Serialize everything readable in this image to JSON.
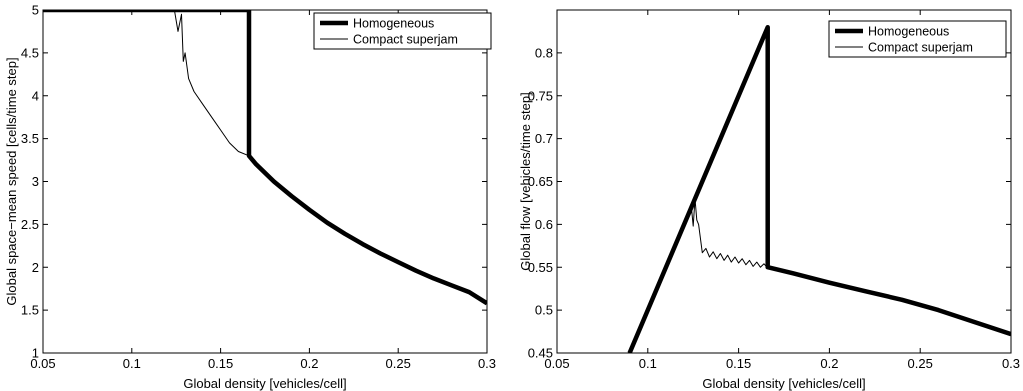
{
  "chart_data": [
    {
      "type": "line",
      "xlabel": "Global density [vehicles/cell]",
      "ylabel": "Global space−mean speed [cells/time step]",
      "xlim": [
        0.05,
        0.3
      ],
      "ylim": [
        1,
        5
      ],
      "x_ticks": [
        0.05,
        0.1,
        0.15,
        0.2,
        0.25,
        0.3
      ],
      "x_tick_labels": [
        "0.05",
        "0.1",
        "0.15",
        "0.2",
        "0.25",
        "0.3"
      ],
      "y_ticks": [
        1,
        1.5,
        2,
        2.5,
        3,
        3.5,
        4,
        4.5,
        5
      ],
      "y_tick_labels": [
        "1",
        "1.5",
        "2",
        "2.5",
        "3",
        "3.5",
        "4",
        "4.5",
        "5"
      ],
      "legend_position": "top-right",
      "grid": false,
      "series": [
        {
          "name": "Homogeneous",
          "style": "thick",
          "x": [
            0.05,
            0.166,
            0.166,
            0.17,
            0.18,
            0.19,
            0.2,
            0.21,
            0.22,
            0.23,
            0.24,
            0.25,
            0.26,
            0.27,
            0.28,
            0.29,
            0.3
          ],
          "y": [
            5.0,
            5.0,
            3.3,
            3.2,
            3.0,
            2.83,
            2.67,
            2.52,
            2.39,
            2.27,
            2.16,
            2.06,
            1.96,
            1.87,
            1.79,
            1.71,
            1.58
          ]
        },
        {
          "name": "Compact superjam",
          "style": "thin",
          "x": [
            0.05,
            0.124,
            0.126,
            0.128,
            0.129,
            0.13,
            0.132,
            0.135,
            0.14,
            0.145,
            0.15,
            0.155,
            0.16,
            0.166,
            0.17,
            0.18,
            0.19,
            0.2,
            0.21,
            0.22,
            0.23,
            0.24,
            0.25,
            0.26,
            0.27,
            0.28,
            0.29,
            0.3
          ],
          "y": [
            5.0,
            5.0,
            4.75,
            4.95,
            4.4,
            4.5,
            4.2,
            4.05,
            3.9,
            3.75,
            3.6,
            3.45,
            3.35,
            3.3,
            3.2,
            3.0,
            2.83,
            2.67,
            2.52,
            2.39,
            2.27,
            2.16,
            2.06,
            1.96,
            1.87,
            1.79,
            1.71,
            1.58
          ]
        }
      ]
    },
    {
      "type": "line",
      "xlabel": "Global density [vehicles/cell]",
      "ylabel": "Global flow [vehicles/time step]",
      "xlim": [
        0.05,
        0.3
      ],
      "ylim": [
        0.45,
        0.85
      ],
      "x_ticks": [
        0.05,
        0.1,
        0.15,
        0.2,
        0.25,
        0.3
      ],
      "x_tick_labels": [
        "0.05",
        "0.1",
        "0.15",
        "0.2",
        "0.25",
        "0.3"
      ],
      "y_ticks": [
        0.45,
        0.5,
        0.55,
        0.6,
        0.65,
        0.7,
        0.75,
        0.8
      ],
      "y_tick_labels": [
        "0.45",
        "0.5",
        "0.55",
        "0.6",
        "0.65",
        "0.7",
        "0.75",
        "0.8"
      ],
      "legend_position": "top-right",
      "grid": false,
      "series": [
        {
          "name": "Homogeneous",
          "style": "thick",
          "x": [
            0.09,
            0.166,
            0.166,
            0.18,
            0.2,
            0.22,
            0.24,
            0.26,
            0.28,
            0.3
          ],
          "y": [
            0.45,
            0.83,
            0.55,
            0.543,
            0.532,
            0.522,
            0.512,
            0.5,
            0.486,
            0.472
          ]
        },
        {
          "name": "Compact superjam",
          "style": "thin",
          "x": [
            0.09,
            0.124,
            0.125,
            0.126,
            0.127,
            0.128,
            0.13,
            0.132,
            0.134,
            0.136,
            0.138,
            0.14,
            0.142,
            0.144,
            0.146,
            0.148,
            0.15,
            0.152,
            0.154,
            0.156,
            0.158,
            0.16,
            0.162,
            0.164,
            0.166,
            0.17,
            0.18,
            0.2,
            0.22,
            0.24,
            0.26,
            0.28,
            0.3
          ],
          "y": [
            0.45,
            0.62,
            0.598,
            0.63,
            0.605,
            0.6,
            0.567,
            0.572,
            0.562,
            0.568,
            0.56,
            0.566,
            0.558,
            0.564,
            0.556,
            0.562,
            0.555,
            0.56,
            0.553,
            0.558,
            0.551,
            0.556,
            0.55,
            0.554,
            0.549,
            0.548,
            0.543,
            0.532,
            0.522,
            0.512,
            0.5,
            0.486,
            0.472
          ]
        }
      ]
    }
  ]
}
